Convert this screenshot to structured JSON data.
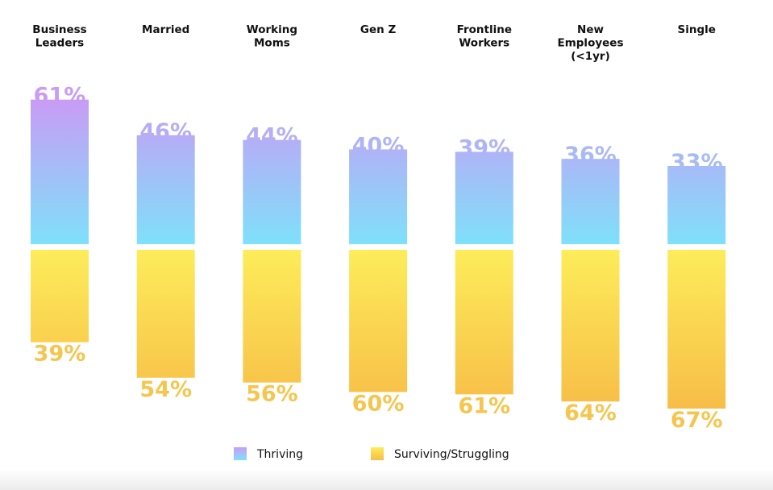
{
  "chart_data": {
    "type": "bar",
    "stacked_diverging": true,
    "categories": [
      [
        "Business",
        "Leaders"
      ],
      [
        "Married"
      ],
      [
        "Working",
        "Moms"
      ],
      [
        "Gen Z"
      ],
      [
        "Frontline",
        "Workers"
      ],
      [
        "New",
        "Employees",
        "(<1yr)"
      ],
      [
        "Single"
      ]
    ],
    "series": [
      {
        "name": "Thriving",
        "values": [
          61,
          46,
          44,
          40,
          39,
          36,
          33
        ],
        "labels": [
          "61%",
          "46%",
          "44%",
          "40%",
          "39%",
          "36%",
          "33%"
        ],
        "colors": [
          "#c89cf5",
          "#7fe0fa"
        ]
      },
      {
        "name": "Surviving/Struggling",
        "values": [
          39,
          54,
          56,
          60,
          61,
          64,
          67
        ],
        "labels": [
          "39%",
          "54%",
          "56%",
          "60%",
          "61%",
          "64%",
          "67%"
        ],
        "colors": [
          "#fdec5a",
          "#f7bd47"
        ]
      }
    ],
    "ylim": [
      0,
      100
    ],
    "grid": false,
    "legend": "bottom-center"
  }
}
